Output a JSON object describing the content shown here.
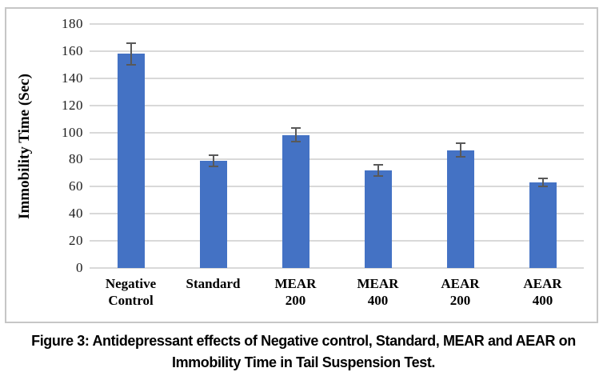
{
  "chart_data": {
    "type": "bar",
    "title": "",
    "xlabel": "",
    "ylabel": "Immobility Time (Sec)",
    "ylim": [
      0,
      180
    ],
    "ytick_step": 20,
    "yticks": [
      0,
      20,
      40,
      60,
      80,
      100,
      120,
      140,
      160,
      180
    ],
    "grid": true,
    "legend": "none",
    "categories": [
      "Negative Control",
      "Standard",
      "MEAR 200",
      "MEAR 400",
      "AEAR 200",
      "AEAR 400"
    ],
    "category_label_lines": [
      [
        "Negative",
        "Control"
      ],
      [
        "Standard"
      ],
      [
        "MEAR",
        "200"
      ],
      [
        "MEAR",
        "400"
      ],
      [
        "AEAR",
        "200"
      ],
      [
        "AEAR",
        "400"
      ]
    ],
    "values": [
      158,
      79,
      98,
      72,
      87,
      63
    ],
    "error_bars": [
      8,
      4,
      5,
      4,
      5,
      3
    ],
    "bar_color": "#4472c4",
    "error_bar_color": "#595959",
    "gridline_color": "#d9d9d9",
    "frame_border_color": "#c6c6c6"
  },
  "caption": {
    "line1": "Figure 3: Antidepressant effects of Negative control, Standard, MEAR and AEAR on",
    "line2": "Immobility Time in Tail Suspension Test."
  }
}
